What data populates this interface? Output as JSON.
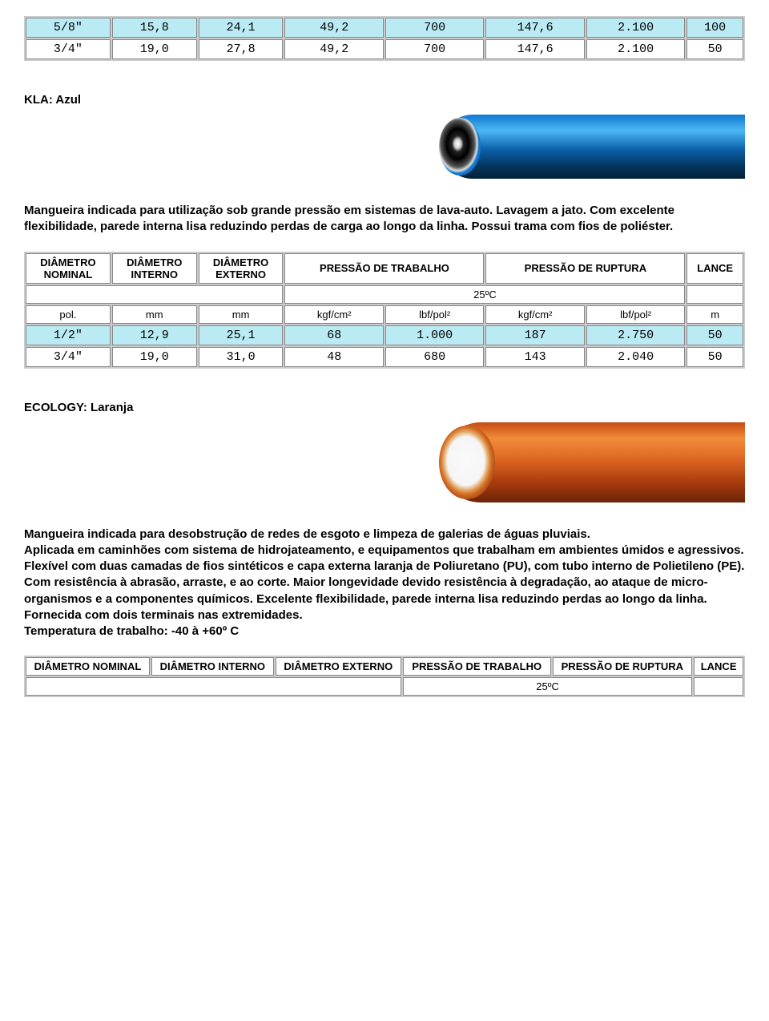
{
  "top_table": {
    "rows": [
      {
        "highlight": true,
        "pol": "5/8\"",
        "di": "15,8",
        "de": "24,1",
        "pt1": "49,2",
        "pt2": "700",
        "pr1": "147,6",
        "pr2": "2.100",
        "lance": "100"
      },
      {
        "highlight": false,
        "pol": "3/4\"",
        "di": "19,0",
        "de": "27,8",
        "pt1": "49,2",
        "pt2": "700",
        "pr1": "147,6",
        "pr2": "2.100",
        "lance": "50"
      }
    ]
  },
  "kla": {
    "title": "KLA: Azul",
    "desc": "Mangueira indicada para utilização sob grande pressão em sistemas de lava-auto. Lavagem a jato. Com excelente flexibilidade, parede interna lisa reduzindo perdas de carga ao longo da linha. Possui trama com fios de poliéster.",
    "headers": {
      "h1": "DIÂMETRO NOMINAL",
      "h2": "DIÂMETRO INTERNO",
      "h3": "DIÂMETRO EXTERNO",
      "h4": "PRESSÃO DE TRABALHO",
      "h5": "PRESSÃO DE RUPTURA",
      "h6": "LANCE"
    },
    "temp": "25ºC",
    "units": {
      "u1": "pol.",
      "u2": "mm",
      "u3": "mm",
      "u4": "kgf/cm²",
      "u5": "lbf/pol²",
      "u6": "kgf/cm²",
      "u7": "lbf/pol²",
      "u8": "m"
    },
    "rows": [
      {
        "highlight": true,
        "pol": "1/2\"",
        "di": "12,9",
        "de": "25,1",
        "pt1": "68",
        "pt2": "1.000",
        "pr1": "187",
        "pr2": "2.750",
        "lance": "50"
      },
      {
        "highlight": false,
        "pol": "3/4\"",
        "di": "19,0",
        "de": "31,0",
        "pt1": "48",
        "pt2": "680",
        "pr1": "143",
        "pr2": "2.040",
        "lance": "50"
      }
    ]
  },
  "ecology": {
    "title": "ECOLOGY: Laranja",
    "desc": "Mangueira indicada para desobstrução de redes de esgoto e limpeza de galerias de águas pluviais.\nAplicada em caminhões com sistema de hidrojateamento, e equipamentos que trabalham em ambientes úmidos e agressivos.\nFlexível com duas camadas de fios sintéticos e capa externa laranja de Poliuretano (PU), com tubo interno de Polietileno (PE).\nCom  resistência à abrasão, arraste,  e ao corte. Maior longevidade devido resistência à degradação, ao ataque de micro-organismos e a componentes químicos. Excelente flexibilidade, parede interna lisa reduzindo perdas ao longo da linha.\nFornecida com dois terminais nas extremidades.\nTemperatura de trabalho: -40 à +60º C",
    "headers": {
      "h1": "DIÂMETRO NOMINAL",
      "h2": "DIÂMETRO INTERNO",
      "h3": "DIÂMETRO EXTERNO",
      "h4": "PRESSÃO DE TRABALHO",
      "h5": "PRESSÃO DE RUPTURA",
      "h6": "LANCE"
    },
    "temp": "25ºC"
  },
  "colors": {
    "highlight_bg": "#baeaf4",
    "border": "#888888",
    "cell_bg": "#ffffff",
    "text": "#000000"
  },
  "col_widths": [
    "12%",
    "12%",
    "12%",
    "14%",
    "14%",
    "14%",
    "14%",
    "8%"
  ]
}
